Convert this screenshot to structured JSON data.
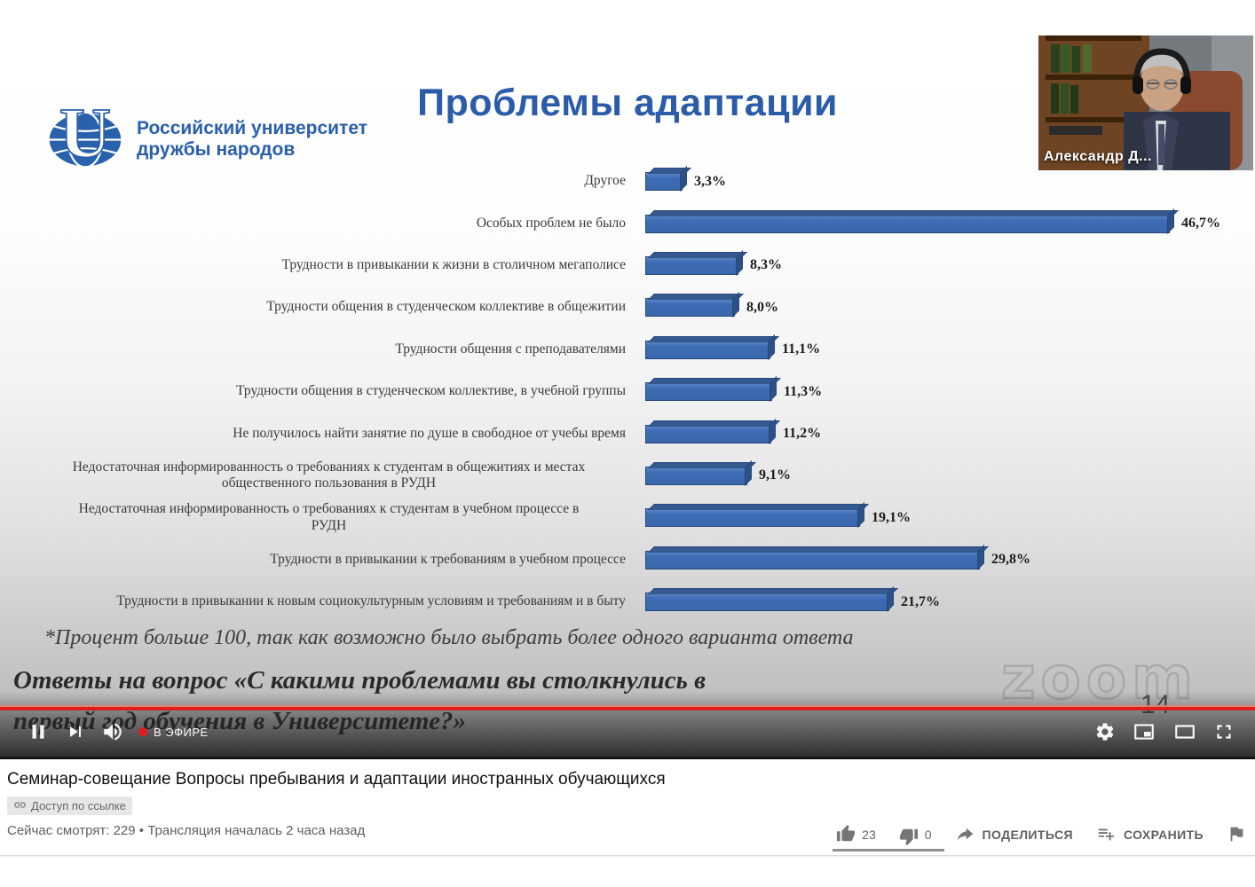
{
  "slide": {
    "title": "Проблемы адаптации",
    "logo_line1": "Российский университет",
    "logo_line2": "дружбы народов",
    "footnote": "*Процент больше 100, так как возможно было выбрать более одного варианта ответа",
    "question_line1": "Ответы на вопрос «С какими проблемами вы столкнулись в",
    "question_line2": "первый год обучения в Университете?»",
    "page_number": "14",
    "watermark": "zoom"
  },
  "chart_data": {
    "type": "bar",
    "orientation": "horizontal",
    "title": "Проблемы адаптации",
    "categories": [
      "Другое",
      "Особых проблем не было",
      "Трудности в привыкании к жизни в столичном мегаполисе",
      "Трудности общения в студенческом коллективе в общежитии",
      "Трудности общения с преподавателями",
      "Трудности общения в студенческом коллективе, в учебной группы",
      "Не получилось найти занятие по душе в свободное от учебы время",
      "Недостаточная информированность о требованиях к студентам в общежитиях и местах\nобщественного пользования в РУДН",
      "Недостаточная информированность о требованиях к студентам в учебном процессе в\nРУДН",
      "Трудности в привыкании к требованиям в учебном процессе",
      "Трудности в привыкании к новым социокультурным условиям и требованиям и в быту"
    ],
    "values": [
      3.3,
      46.7,
      8.3,
      8.0,
      11.1,
      11.3,
      11.2,
      9.1,
      19.1,
      29.8,
      21.7
    ],
    "value_labels": [
      "3,3%",
      "46,7%",
      "8,3%",
      "8,0%",
      "11,1%",
      "11,3%",
      "11,2%",
      "9,1%",
      "19,1%",
      "29,8%",
      "21,7%"
    ],
    "xlim": [
      0,
      50
    ],
    "bar_color": "#3e6db5",
    "bar_edge_color": "#26497d",
    "grid": false,
    "legend": false
  },
  "webcam": {
    "name_label": "Александр Д..."
  },
  "player": {
    "live_label": "В ЭФИРЕ",
    "progress_color": "#db1f1f"
  },
  "page": {
    "title": "Семинар-совещание Вопросы пребывания и адаптации иностранных обучающихся",
    "access_badge": "Доступ по ссылке",
    "meta": "Сейчас смотрят: 229 • Трансляция началась 2 часа назад",
    "likes": "23",
    "dislikes": "0",
    "share_label": "ПОДЕЛИТЬСЯ",
    "save_label": "СОХРАНИТЬ"
  }
}
